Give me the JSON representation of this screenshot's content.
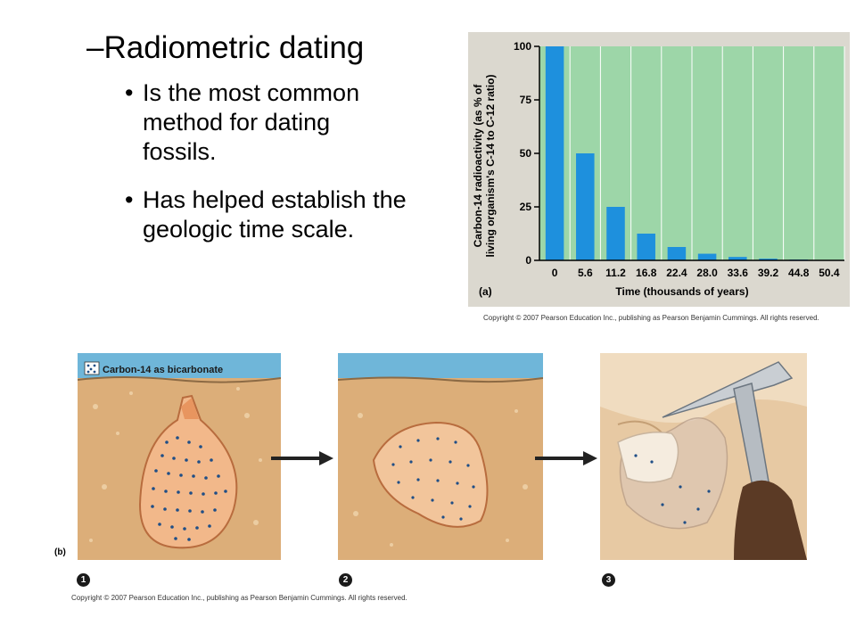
{
  "slide": {
    "heading": "–Radiometric dating",
    "bullets": [
      {
        "marker": "•",
        "text": "Is the most common method for dating fossils."
      },
      {
        "marker": "•",
        "text": "Has helped establish the geologic time scale."
      }
    ]
  },
  "figure_a": {
    "label": "(a)",
    "copyright": "Copyright © 2007 Pearson Education Inc., publishing as Pearson Benjamin Cummings. All rights reserved."
  },
  "figure_b": {
    "label": "(b)",
    "legend": "Carbon-14 as bicarbonate",
    "steps": [
      "1",
      "2",
      "3"
    ],
    "copyright": "Copyright © 2007 Pearson Education Inc., publishing as Pearson Benjamin Cummings. All rights reserved."
  },
  "colors": {
    "plot_bg": "#9dd6a8",
    "bar": "#1e90dd",
    "panel_bg": "#dbd8cf",
    "water": "#6fb6d9",
    "sand": "#dcae79",
    "shell": "#f2b88a",
    "dots": "#1f4e86"
  },
  "chart_data": {
    "type": "bar",
    "xlabel": "Time (thousands of years)",
    "ylabel": "Carbon-14 radioactivity (as % of living organism's C-14 to C-12 ratio)",
    "ylabel_lines": [
      "Carbon-14 radioactivity (as % of",
      "living organism's C-14 to C-12 ratio)"
    ],
    "categories": [
      "0",
      "5.6",
      "11.2",
      "16.8",
      "22.4",
      "28.0",
      "33.6",
      "39.2",
      "44.8",
      "50.4"
    ],
    "values": [
      100,
      50,
      25,
      12.5,
      6.25,
      3.1,
      1.6,
      0.8,
      0.4,
      0.2
    ],
    "yticks": [
      0,
      25,
      50,
      75,
      100
    ],
    "ylim": [
      0,
      100
    ],
    "grid": true
  }
}
